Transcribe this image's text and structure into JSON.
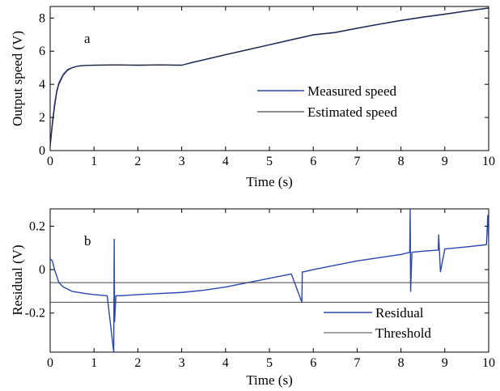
{
  "chart_data": [
    {
      "panel": "a",
      "type": "line",
      "xlabel": "Time (s)",
      "ylabel": "Output speed (V)",
      "xlim": [
        0,
        10
      ],
      "ylim": [
        0,
        8.7
      ],
      "xticks": [
        "0",
        "1",
        "2",
        "3",
        "4",
        "5",
        "6",
        "7",
        "8",
        "9",
        "10"
      ],
      "yticks": [
        "0",
        "2",
        "4",
        "6",
        "8"
      ],
      "xtick_values": [
        0,
        1,
        2,
        3,
        4,
        5,
        6,
        7,
        8,
        9,
        10
      ],
      "ytick_values": [
        0,
        2,
        4,
        6,
        8
      ],
      "grid": false,
      "legend_position": "lower-right",
      "series": [
        {
          "name": "Measured speed",
          "color": "#2b46b0",
          "x": [
            0,
            0.05,
            0.1,
            0.15,
            0.2,
            0.3,
            0.4,
            0.5,
            0.6,
            0.7,
            0.8,
            1.0,
            1.25,
            1.5,
            1.75,
            2.0,
            2.25,
            2.5,
            2.75,
            3.0,
            3.25,
            3.5,
            4.0,
            4.5,
            5.0,
            5.5,
            6.0,
            6.5,
            7.0,
            7.5,
            8.0,
            8.5,
            9.0,
            9.5,
            10.0
          ],
          "y": [
            0.3,
            1.7,
            2.8,
            3.6,
            4.1,
            4.6,
            4.9,
            5.0,
            5.08,
            5.12,
            5.14,
            5.15,
            5.16,
            5.17,
            5.16,
            5.15,
            5.16,
            5.17,
            5.16,
            5.15,
            5.32,
            5.47,
            5.78,
            6.08,
            6.38,
            6.68,
            6.98,
            7.12,
            7.38,
            7.62,
            7.85,
            8.05,
            8.23,
            8.42,
            8.6
          ]
        },
        {
          "name": "Estimated speed",
          "color": "#222222",
          "x": [
            0,
            0.05,
            0.1,
            0.15,
            0.2,
            0.3,
            0.4,
            0.5,
            0.6,
            0.7,
            0.8,
            1.0,
            1.25,
            1.5,
            1.75,
            2.0,
            2.25,
            2.5,
            2.75,
            3.0,
            3.25,
            3.5,
            4.0,
            4.5,
            5.0,
            5.5,
            6.0,
            6.5,
            7.0,
            7.5,
            8.0,
            8.5,
            9.0,
            9.5,
            10.0
          ],
          "y": [
            0.2,
            1.5,
            2.6,
            3.5,
            4.0,
            4.55,
            4.85,
            5.0,
            5.08,
            5.12,
            5.14,
            5.16,
            5.17,
            5.18,
            5.17,
            5.16,
            5.17,
            5.18,
            5.17,
            5.16,
            5.34,
            5.49,
            5.8,
            6.1,
            6.4,
            6.7,
            7.0,
            7.14,
            7.4,
            7.64,
            7.87,
            8.07,
            8.25,
            8.44,
            8.62
          ]
        }
      ]
    },
    {
      "panel": "b",
      "type": "line",
      "xlabel": "Time (s)",
      "ylabel": "Residual (V)",
      "xlim": [
        0,
        10
      ],
      "ylim": [
        -0.38,
        0.28
      ],
      "xticks": [
        "0",
        "1",
        "2",
        "3",
        "4",
        "5",
        "6",
        "7",
        "8",
        "9",
        "10"
      ],
      "yticks": [
        "0.2",
        "0",
        "-0.2"
      ],
      "xtick_values": [
        0,
        1,
        2,
        3,
        4,
        5,
        6,
        7,
        8,
        9,
        10
      ],
      "ytick_values": [
        0.2,
        0,
        -0.2
      ],
      "grid": false,
      "legend_position": "lower-right",
      "series": [
        {
          "name": "Residual",
          "color": "#2b46b0",
          "x": [
            0,
            0.05,
            0.1,
            0.2,
            0.3,
            0.5,
            0.8,
            1.0,
            1.3,
            1.45,
            1.46,
            1.47,
            1.5,
            1.52,
            1.6,
            2.0,
            2.5,
            3.0,
            3.5,
            4.0,
            4.5,
            5.0,
            5.5,
            5.74,
            5.75,
            5.78,
            6.0,
            6.5,
            7.0,
            7.5,
            8.0,
            8.2,
            8.21,
            8.22,
            8.25,
            8.5,
            8.85,
            8.86,
            8.9,
            9.0,
            9.5,
            9.95,
            9.98,
            10.0
          ],
          "y": [
            0.05,
            0.04,
            0.0,
            -0.06,
            -0.08,
            -0.1,
            -0.11,
            -0.115,
            -0.12,
            -0.38,
            0.14,
            -0.24,
            -0.12,
            -0.12,
            -0.12,
            -0.115,
            -0.11,
            -0.105,
            -0.095,
            -0.08,
            -0.06,
            -0.04,
            -0.02,
            -0.15,
            -0.01,
            -0.01,
            0.0,
            0.02,
            0.04,
            0.055,
            0.07,
            0.08,
            0.28,
            -0.1,
            0.08,
            0.085,
            0.09,
            0.16,
            -0.01,
            0.095,
            0.105,
            0.115,
            0.25,
            0.12
          ]
        },
        {
          "name": "Threshold",
          "color": "#444444",
          "x": [
            0,
            10
          ],
          "y": [
            -0.06,
            -0.06
          ]
        },
        {
          "name": "",
          "color": "#444444",
          "x": [
            0,
            10
          ],
          "y": [
            -0.15,
            -0.15
          ]
        }
      ]
    }
  ]
}
